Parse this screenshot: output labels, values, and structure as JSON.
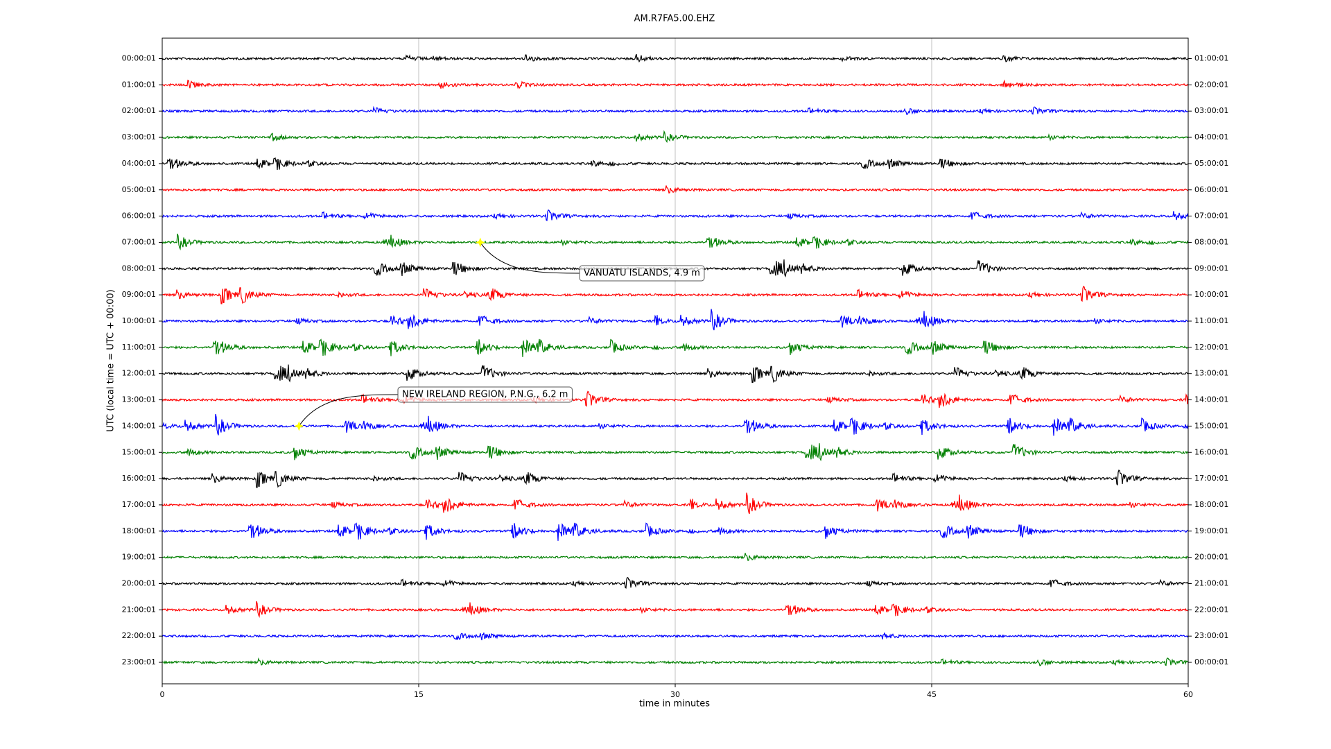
{
  "chart_data": {
    "type": "helicorder",
    "title": "AM.R7FA5.00.EHZ",
    "xlabel": "time in minutes",
    "ylabel": "UTC (local time = UTC + 00:00)",
    "xlim": [
      0,
      60
    ],
    "xticks": [
      0,
      15,
      30,
      45,
      60
    ],
    "grid": true,
    "colors": [
      "#000000",
      "#ff0000",
      "#0000ff",
      "#008000"
    ],
    "categories": [
      "00:00:01",
      "01:00:01",
      "02:00:01",
      "03:00:01",
      "04:00:01",
      "05:00:01",
      "06:00:01",
      "07:00:01",
      "08:00:01",
      "09:00:01",
      "10:00:01",
      "11:00:01",
      "12:00:01",
      "13:00:01",
      "14:00:01",
      "15:00:01",
      "16:00:01",
      "17:00:01",
      "18:00:01",
      "19:00:01",
      "20:00:01",
      "21:00:01",
      "22:00:01",
      "23:00:01"
    ],
    "right_categories": [
      "01:00:01",
      "02:00:01",
      "03:00:01",
      "04:00:01",
      "05:00:01",
      "06:00:01",
      "07:00:01",
      "08:00:01",
      "09:00:01",
      "10:00:01",
      "11:00:01",
      "12:00:01",
      "13:00:01",
      "14:00:01",
      "15:00:01",
      "16:00:01",
      "17:00:01",
      "18:00:01",
      "19:00:01",
      "20:00:01",
      "21:00:01",
      "22:00:01",
      "23:00:01",
      "00:00:01"
    ],
    "annotations": [
      {
        "text": "VANUATU ISLANDS, 4.9 m",
        "x": 18.6,
        "row": 7
      },
      {
        "text": "NEW IRELAND REGION, P.N.G., 6.2 m",
        "x": 8.0,
        "row": 14
      }
    ]
  }
}
